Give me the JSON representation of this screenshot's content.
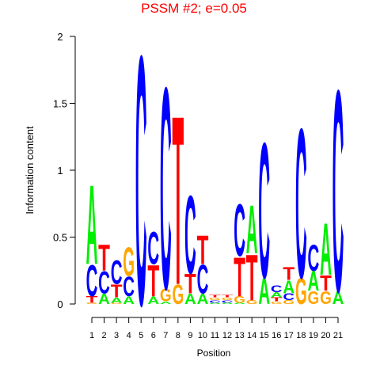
{
  "chart_data": {
    "type": "logo",
    "title": "PSSM #2; e=0.05",
    "x_label": "Position",
    "y_label": "Information content",
    "categories": [
      "1",
      "2",
      "3",
      "4",
      "5",
      "6",
      "7",
      "8",
      "9",
      "10",
      "11",
      "12",
      "13",
      "14",
      "15",
      "16",
      "17",
      "18",
      "19",
      "20",
      "21"
    ],
    "series": [
      {
        "name": "A",
        "color": "#00ee00",
        "values": [
          0.61,
          0.08,
          0.04,
          0.06,
          0,
          0.06,
          0.02,
          0,
          0.08,
          0.08,
          0.01,
          0.01,
          0.01,
          0.37,
          0.2,
          0.04,
          0.1,
          0,
          0.15,
          0.4,
          0.1
        ]
      },
      {
        "name": "C",
        "color": "#0000ff",
        "values": [
          0.24,
          0.17,
          0.18,
          0.15,
          1.92,
          0.25,
          1.55,
          0,
          0.6,
          0.22,
          0.02,
          0.02,
          0.4,
          0,
          1.04,
          0.05,
          0.05,
          1.15,
          0.2,
          0,
          1.55
        ]
      },
      {
        "name": "G",
        "color": "#ffa500",
        "values": [
          0.01,
          0,
          0.01,
          0.22,
          0,
          0,
          0.1,
          0.15,
          0,
          0,
          0.02,
          0.02,
          0.05,
          0.03,
          0,
          0.02,
          0.03,
          0.2,
          0.1,
          0.1,
          0
        ]
      },
      {
        "name": "T",
        "color": "#ff0000",
        "values": [
          0.05,
          0.2,
          0.1,
          0,
          0,
          0.24,
          0,
          1.3,
          0.15,
          0.22,
          0.02,
          0.02,
          0.3,
          0.35,
          0,
          0.03,
          0.1,
          0,
          0,
          0.12,
          0
        ]
      }
    ],
    "ylim": [
      0,
      2
    ],
    "yticks": [
      0,
      0.5,
      1,
      1.5,
      2
    ]
  }
}
